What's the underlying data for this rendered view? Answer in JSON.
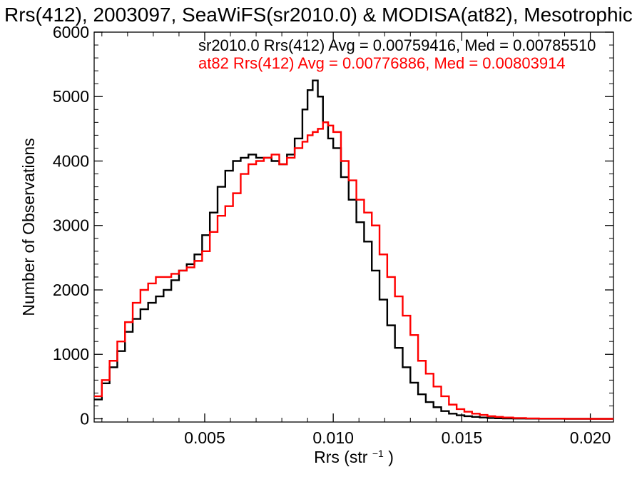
{
  "chart_data": {
    "type": "line",
    "title": "Rrs(412), 2003097, SeaWiFS(sr2010.0) & MODISA(at82), Mesotrophic",
    "xlabel_main": "Rrs (str",
    "xlabel_sup": "−1",
    "xlabel_close": ")",
    "ylabel": "Number of Observations",
    "xlim": [
      0.0007,
      0.0209
    ],
    "ylim": [
      -50,
      6000
    ],
    "xticks": [
      0.005,
      0.01,
      0.015,
      0.02
    ],
    "xtick_labels": [
      "0.005",
      "0.010",
      "0.015",
      "0.020"
    ],
    "yticks": [
      0,
      1000,
      2000,
      3000,
      4000,
      5000,
      6000
    ],
    "ytick_labels": [
      "0",
      "1000",
      "2000",
      "3000",
      "4000",
      "5000",
      "6000"
    ],
    "grid": false,
    "legend_position": "top",
    "series": [
      {
        "name": "sr2010.0",
        "legend": "sr2010.0 Rrs(412) Avg = 0.00759416, Med = 0.00785510",
        "color": "#000000",
        "x": [
          0.0007,
          0.001,
          0.0013,
          0.0016,
          0.0019,
          0.0022,
          0.0025,
          0.0028,
          0.0031,
          0.0034,
          0.0037,
          0.004,
          0.0043,
          0.0046,
          0.0049,
          0.0052,
          0.0055,
          0.0058,
          0.0061,
          0.0064,
          0.0067,
          0.007,
          0.0073,
          0.0076,
          0.0079,
          0.0082,
          0.0085,
          0.0088,
          0.009,
          0.0092,
          0.0094,
          0.0096,
          0.0098,
          0.01,
          0.0103,
          0.0106,
          0.0109,
          0.0112,
          0.0115,
          0.0118,
          0.0121,
          0.0124,
          0.0127,
          0.013,
          0.0133,
          0.0136,
          0.0139,
          0.0142,
          0.0145,
          0.0148,
          0.0151,
          0.0154,
          0.0157,
          0.016,
          0.0163,
          0.0166,
          0.017,
          0.0175,
          0.018,
          0.019,
          0.02,
          0.0209
        ],
        "y": [
          300,
          550,
          800,
          1050,
          1350,
          1550,
          1700,
          1800,
          1900,
          2000,
          2150,
          2300,
          2400,
          2550,
          2850,
          3200,
          3600,
          3850,
          4000,
          4050,
          4100,
          4050,
          4050,
          4000,
          3950,
          4100,
          4350,
          4800,
          5100,
          5250,
          5000,
          4600,
          4350,
          4200,
          3750,
          3400,
          3050,
          2750,
          2300,
          1850,
          1450,
          1100,
          800,
          560,
          380,
          260,
          180,
          120,
          80,
          55,
          40,
          30,
          20,
          12,
          8,
          5,
          4,
          2,
          1,
          0,
          0,
          0
        ]
      },
      {
        "name": "at82",
        "legend": "at82 Rrs(412) Avg = 0.00776886, Med = 0.00803914",
        "color": "#ff0000",
        "x": [
          0.0007,
          0.001,
          0.0013,
          0.0016,
          0.0019,
          0.0022,
          0.0025,
          0.0028,
          0.0031,
          0.0034,
          0.0037,
          0.004,
          0.0043,
          0.0046,
          0.0049,
          0.0052,
          0.0055,
          0.0058,
          0.0061,
          0.0064,
          0.0067,
          0.007,
          0.0073,
          0.0076,
          0.0079,
          0.0082,
          0.0085,
          0.0088,
          0.009,
          0.0092,
          0.0094,
          0.0096,
          0.0098,
          0.01,
          0.0103,
          0.0106,
          0.0109,
          0.0112,
          0.0115,
          0.0118,
          0.0121,
          0.0124,
          0.0127,
          0.013,
          0.0133,
          0.0136,
          0.0139,
          0.0142,
          0.0145,
          0.0148,
          0.0151,
          0.0154,
          0.0157,
          0.016,
          0.0163,
          0.0166,
          0.017,
          0.0175,
          0.018,
          0.019,
          0.02,
          0.0209
        ],
        "y": [
          350,
          600,
          900,
          1200,
          1500,
          1800,
          2000,
          2100,
          2200,
          2200,
          2250,
          2300,
          2350,
          2450,
          2600,
          2900,
          3150,
          3300,
          3500,
          3800,
          3950,
          4000,
          4050,
          4100,
          3950,
          4050,
          4200,
          4300,
          4400,
          4450,
          4500,
          4600,
          4550,
          4450,
          4000,
          3700,
          3400,
          3200,
          3000,
          2550,
          2200,
          1900,
          1600,
          1300,
          900,
          700,
          500,
          350,
          220,
          150,
          110,
          80,
          60,
          40,
          30,
          20,
          12,
          6,
          3,
          1,
          0,
          0
        ]
      }
    ]
  }
}
